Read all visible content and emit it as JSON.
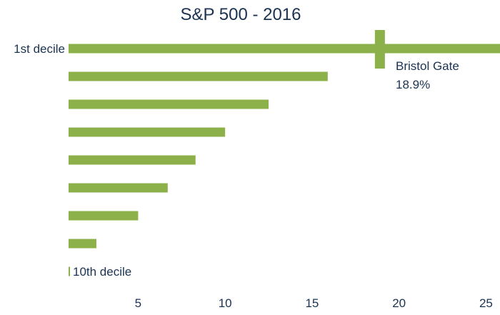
{
  "chart_data": {
    "type": "bar",
    "orientation": "horizontal",
    "title": "S&P 500 - 2016",
    "categories": [
      "1st decile",
      "",
      "",
      "",
      "",
      "",
      "",
      "",
      "10th decile"
    ],
    "values": [
      26.0,
      15.9,
      12.5,
      10.0,
      8.3,
      6.7,
      5.0,
      2.6,
      0.1
    ],
    "bar_color": "#8cb04a",
    "text_color": "#1b3350",
    "xlim": [
      1.0,
      25.5
    ],
    "xticks": [
      5,
      10,
      15,
      20,
      25
    ],
    "grid": false,
    "marker": {
      "label": "Bristol Gate",
      "value_label": "18.9%",
      "value": 18.9,
      "category_index": 0
    }
  }
}
